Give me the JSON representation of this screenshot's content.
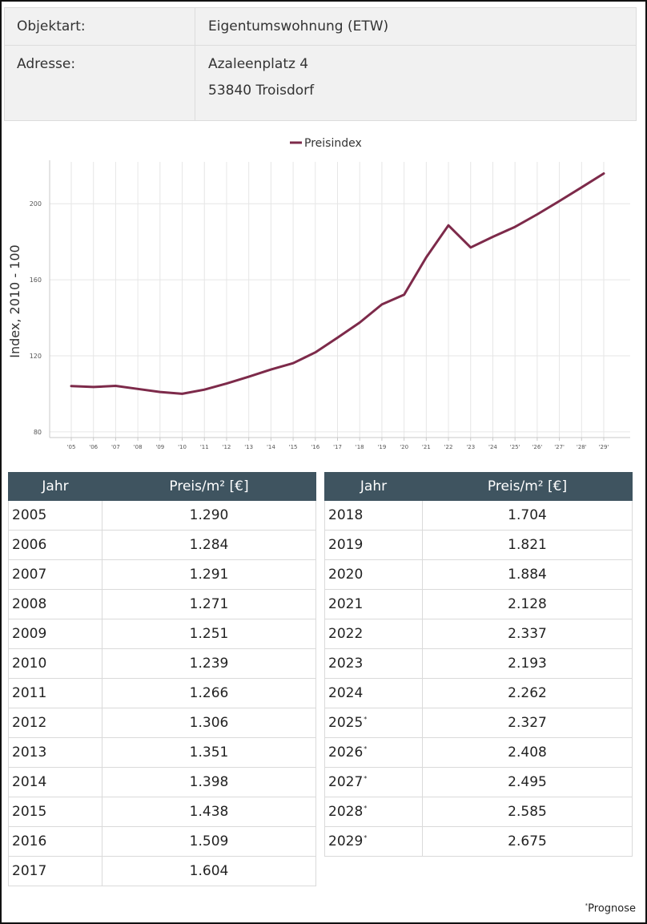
{
  "info": {
    "rows": [
      {
        "label": "Objektart:",
        "value": "Eigentumswohnung (ETW)"
      },
      {
        "label": "Adresse:",
        "value": "Azaleenplatz 4",
        "value2": "53840 Troisdorf"
      }
    ]
  },
  "chart_data": {
    "type": "line",
    "legend": "Preisindex",
    "legend_position": "top-center",
    "series_color": "#7d2a4a",
    "ylabel": "Index, 2010 - 100",
    "xlabel": "",
    "yticks": [
      80,
      120,
      160,
      200
    ],
    "ylim": [
      77,
      222
    ],
    "grid": true,
    "x": [
      "'05",
      "'06",
      "'07",
      "'08",
      "'09",
      "'10",
      "'11",
      "'12",
      "'13",
      "'14",
      "'15",
      "'16",
      "'17",
      "'18",
      "'19",
      "'20",
      "'21",
      "'22",
      "'23",
      "'24",
      "'25'",
      "'26'",
      "'27'",
      "'28'",
      "'29'"
    ],
    "series": [
      {
        "name": "Preisindex",
        "values": [
          104.1,
          103.6,
          104.2,
          102.6,
          101.0,
          100.0,
          102.2,
          105.4,
          109.0,
          112.8,
          116.1,
          121.8,
          129.5,
          137.5,
          147.0,
          152.1,
          171.8,
          188.6,
          177.0,
          182.6,
          187.8,
          194.4,
          201.4,
          208.6,
          215.9
        ]
      }
    ]
  },
  "tables": {
    "headers": {
      "year": "Jahr",
      "price": "Preis/m² [€]"
    },
    "left": [
      {
        "year": "2005",
        "price": "1.290"
      },
      {
        "year": "2006",
        "price": "1.284"
      },
      {
        "year": "2007",
        "price": "1.291"
      },
      {
        "year": "2008",
        "price": "1.271"
      },
      {
        "year": "2009",
        "price": "1.251"
      },
      {
        "year": "2010",
        "price": "1.239"
      },
      {
        "year": "2011",
        "price": "1.266"
      },
      {
        "year": "2012",
        "price": "1.306"
      },
      {
        "year": "2013",
        "price": "1.351"
      },
      {
        "year": "2014",
        "price": "1.398"
      },
      {
        "year": "2015",
        "price": "1.438"
      },
      {
        "year": "2016",
        "price": "1.509"
      },
      {
        "year": "2017",
        "price": "1.604"
      }
    ],
    "right": [
      {
        "year": "2018",
        "price": "1.704"
      },
      {
        "year": "2019",
        "price": "1.821"
      },
      {
        "year": "2020",
        "price": "1.884"
      },
      {
        "year": "2021",
        "price": "2.128"
      },
      {
        "year": "2022",
        "price": "2.337"
      },
      {
        "year": "2023",
        "price": "2.193"
      },
      {
        "year": "2024",
        "price": "2.262"
      },
      {
        "year": "2025",
        "price": "2.327",
        "mark": "*"
      },
      {
        "year": "2026",
        "price": "2.408",
        "mark": "*"
      },
      {
        "year": "2027",
        "price": "2.495",
        "mark": "*"
      },
      {
        "year": "2028",
        "price": "2.585",
        "mark": "*"
      },
      {
        "year": "2029",
        "price": "2.675",
        "mark": "*"
      }
    ]
  },
  "note": {
    "mark": "*",
    "text": "Prognose"
  }
}
